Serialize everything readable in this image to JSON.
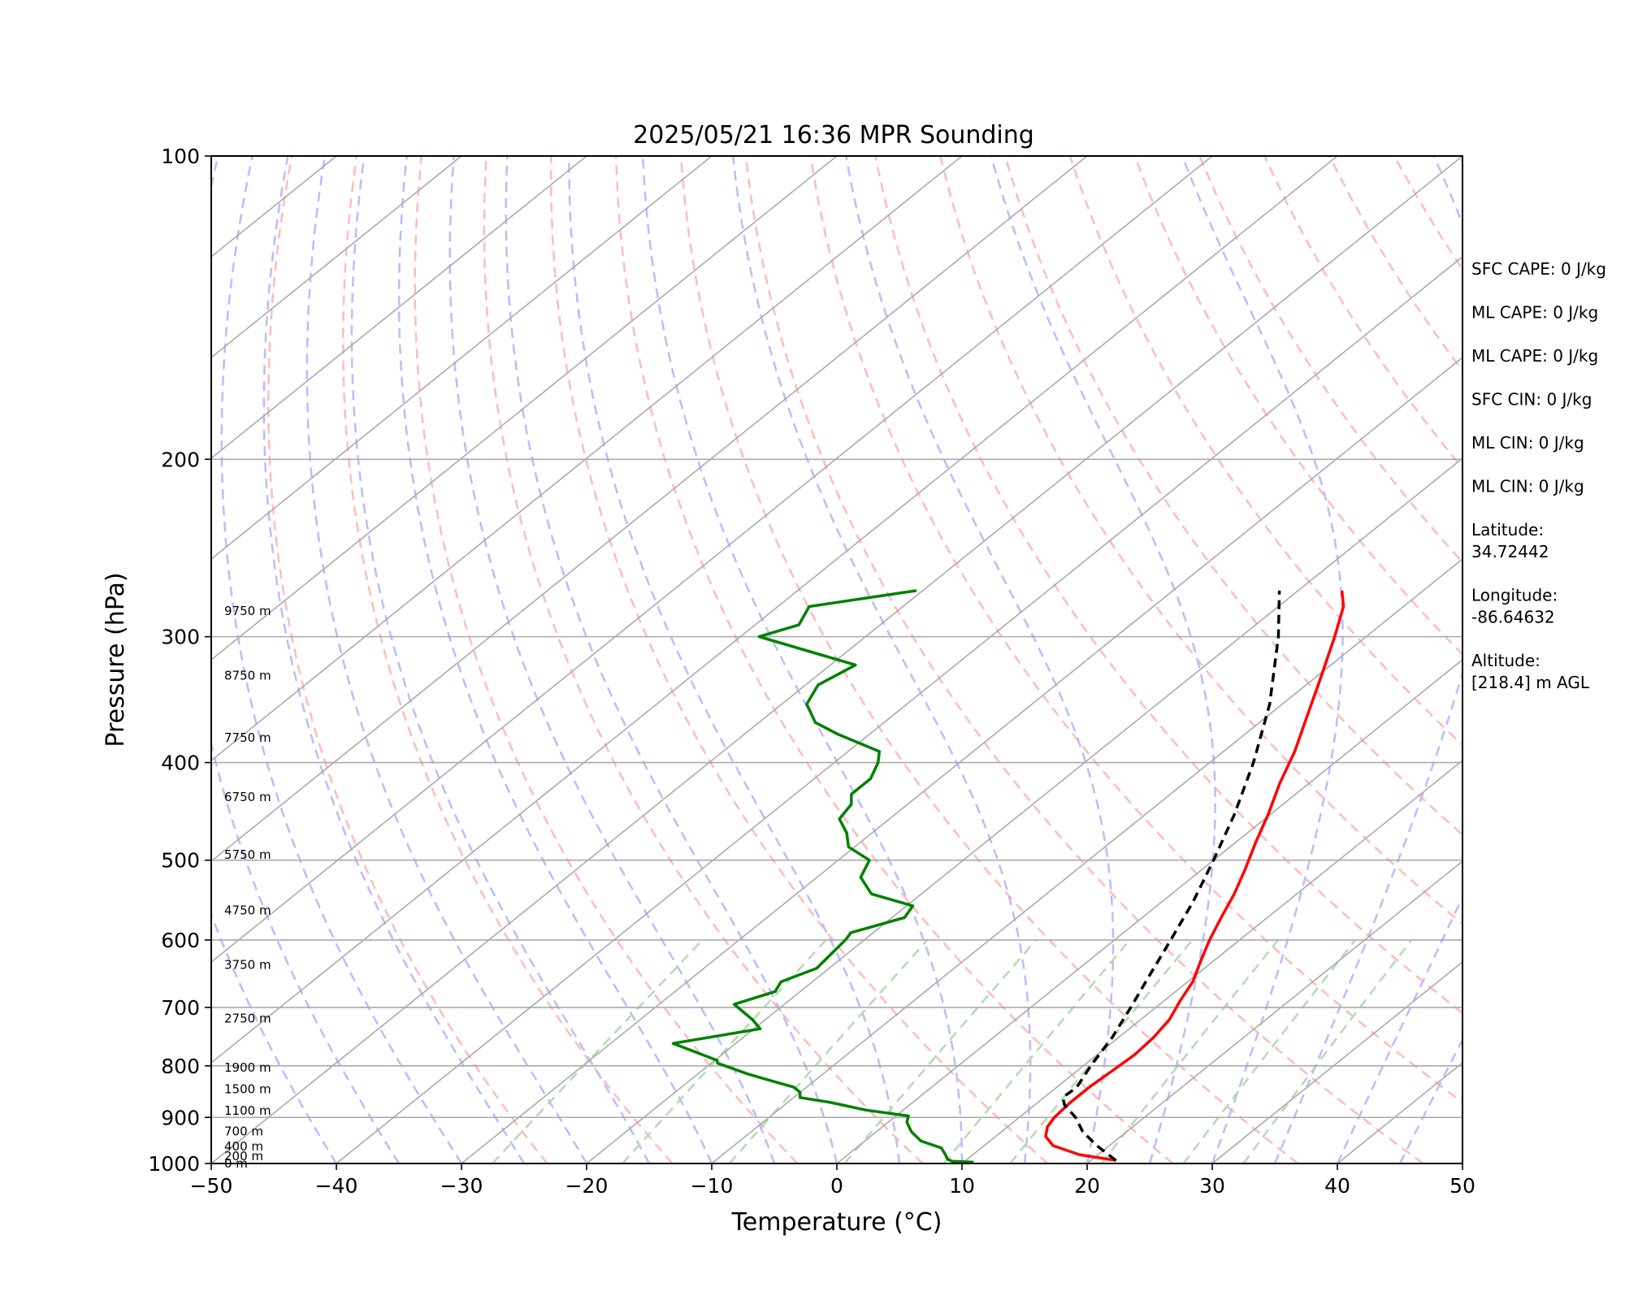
{
  "chart_data": {
    "type": "line",
    "title": "2025/05/21 16:36 MPR Sounding",
    "xlabel": "Temperature (°C)",
    "ylabel": "Pressure (hPa)",
    "xlim": [
      -50,
      50
    ],
    "ylim": [
      1000,
      100
    ],
    "y_scale": "log",
    "x_ticks": [
      "−50",
      "−40",
      "−30",
      "−20",
      "−10",
      "0",
      "10",
      "20",
      "30",
      "40",
      "50"
    ],
    "y_ticks": [
      {
        "p": 100,
        "label": "100"
      },
      {
        "p": 200,
        "label": "200"
      },
      {
        "p": 300,
        "label": "300"
      },
      {
        "p": 400,
        "label": "400"
      },
      {
        "p": 500,
        "label": "500"
      },
      {
        "p": 600,
        "label": "600"
      },
      {
        "p": 700,
        "label": "700"
      },
      {
        "p": 800,
        "label": "800"
      },
      {
        "p": 900,
        "label": "900"
      },
      {
        "p": 1000,
        "label": "1000"
      }
    ],
    "grid": true,
    "skew": "skew-T",
    "colors": {
      "temperature": "#ff0000",
      "dewpoint": "#008000",
      "parcel": "#000000",
      "dry_adiabats": "#ffbbbb",
      "moist_adiabats": "#bbbbff",
      "mixing_ratio": "#b3dbb3",
      "isotherms": "#aaaaaa"
    },
    "altitude_labels": [
      {
        "p": 1000,
        "label": "0 m"
      },
      {
        "p": 983,
        "label": "200 m"
      },
      {
        "p": 962,
        "label": "400 m"
      },
      {
        "p": 929,
        "label": "700 m"
      },
      {
        "p": 886,
        "label": "1100 m"
      },
      {
        "p": 844,
        "label": "1500 m"
      },
      {
        "p": 803,
        "label": "1900 m"
      },
      {
        "p": 718,
        "label": "2750 m"
      },
      {
        "p": 635,
        "label": "3750 m"
      },
      {
        "p": 561,
        "label": "4750 m"
      },
      {
        "p": 494,
        "label": "5750 m"
      },
      {
        "p": 433,
        "label": "6750 m"
      },
      {
        "p": 378,
        "label": "7750 m"
      },
      {
        "p": 328,
        "label": "8750 m"
      },
      {
        "p": 283,
        "label": "9750 m"
      }
    ],
    "series": [
      {
        "key": "temperature",
        "points": [
          {
            "p": 993,
            "t": 22.0
          },
          {
            "p": 980,
            "t": 18.5
          },
          {
            "p": 960,
            "t": 15.5
          },
          {
            "p": 940,
            "t": 14.0
          },
          {
            "p": 920,
            "t": 13.2
          },
          {
            "p": 900,
            "t": 12.8
          },
          {
            "p": 870,
            "t": 12.6
          },
          {
            "p": 840,
            "t": 12.6
          },
          {
            "p": 810,
            "t": 12.8
          },
          {
            "p": 780,
            "t": 13.0
          },
          {
            "p": 750,
            "t": 12.8
          },
          {
            "p": 720,
            "t": 12.3
          },
          {
            "p": 690,
            "t": 11.3
          },
          {
            "p": 660,
            "t": 10.4
          },
          {
            "p": 630,
            "t": 9.0
          },
          {
            "p": 600,
            "t": 7.6
          },
          {
            "p": 570,
            "t": 6.3
          },
          {
            "p": 540,
            "t": 5.0
          },
          {
            "p": 510,
            "t": 3.4
          },
          {
            "p": 480,
            "t": 1.6
          },
          {
            "p": 450,
            "t": -0.2
          },
          {
            "p": 420,
            "t": -2.3
          },
          {
            "p": 390,
            "t": -4.3
          },
          {
            "p": 360,
            "t": -6.8
          },
          {
            "p": 330,
            "t": -9.5
          },
          {
            "p": 300,
            "t": -12.5
          },
          {
            "p": 280,
            "t": -14.8
          },
          {
            "p": 270,
            "t": -16.5
          }
        ]
      },
      {
        "key": "dewpoint",
        "points": [
          {
            "p": 997,
            "t": 10.8
          },
          {
            "p": 995,
            "t": 9.0
          },
          {
            "p": 990,
            "t": 8.4
          },
          {
            "p": 980,
            "t": 7.8
          },
          {
            "p": 965,
            "t": 6.8
          },
          {
            "p": 950,
            "t": 4.5
          },
          {
            "p": 930,
            "t": 2.8
          },
          {
            "p": 910,
            "t": 1.5
          },
          {
            "p": 897,
            "t": 1.0
          },
          {
            "p": 885,
            "t": -3.0
          },
          {
            "p": 870,
            "t": -6.5
          },
          {
            "p": 860,
            "t": -9.5
          },
          {
            "p": 850,
            "t": -10.0
          },
          {
            "p": 840,
            "t": -11.0
          },
          {
            "p": 830,
            "t": -13.0
          },
          {
            "p": 815,
            "t": -16.0
          },
          {
            "p": 795,
            "t": -19.5
          },
          {
            "p": 790,
            "t": -19.8
          },
          {
            "p": 760,
            "t": -25.0
          },
          {
            "p": 735,
            "t": -19.5
          },
          {
            "p": 720,
            "t": -21.0
          },
          {
            "p": 695,
            "t": -24.0
          },
          {
            "p": 675,
            "t": -22.0
          },
          {
            "p": 660,
            "t": -22.5
          },
          {
            "p": 640,
            "t": -21.0
          },
          {
            "p": 600,
            "t": -21.5
          },
          {
            "p": 590,
            "t": -21.8
          },
          {
            "p": 570,
            "t": -19.0
          },
          {
            "p": 555,
            "t": -19.5
          },
          {
            "p": 540,
            "t": -24.0
          },
          {
            "p": 520,
            "t": -26.5
          },
          {
            "p": 500,
            "t": -27.5
          },
          {
            "p": 485,
            "t": -30.5
          },
          {
            "p": 470,
            "t": -32.0
          },
          {
            "p": 455,
            "t": -34.0
          },
          {
            "p": 440,
            "t": -34.5
          },
          {
            "p": 430,
            "t": -35.5
          },
          {
            "p": 415,
            "t": -35.5
          },
          {
            "p": 400,
            "t": -36.5
          },
          {
            "p": 390,
            "t": -37.5
          },
          {
            "p": 375,
            "t": -42.5
          },
          {
            "p": 365,
            "t": -45.5
          },
          {
            "p": 350,
            "t": -48.0
          },
          {
            "p": 335,
            "t": -49.0
          },
          {
            "p": 320,
            "t": -48.0
          },
          {
            "p": 300,
            "t": -58.5
          },
          {
            "p": 292,
            "t": -56.5
          },
          {
            "p": 280,
            "t": -57.5
          },
          {
            "p": 270,
            "t": -50.5
          }
        ]
      },
      {
        "key": "parcel",
        "dashed": true,
        "points": [
          {
            "p": 993,
            "t": 22.0
          },
          {
            "p": 960,
            "t": 19.0
          },
          {
            "p": 930,
            "t": 16.5
          },
          {
            "p": 900,
            "t": 14.5
          },
          {
            "p": 875,
            "t": 12.4
          },
          {
            "p": 860,
            "t": 11.5
          },
          {
            "p": 840,
            "t": 11.6
          },
          {
            "p": 800,
            "t": 10.6
          },
          {
            "p": 750,
            "t": 9.5
          },
          {
            "p": 700,
            "t": 8.0
          },
          {
            "p": 650,
            "t": 6.3
          },
          {
            "p": 600,
            "t": 4.5
          },
          {
            "p": 550,
            "t": 2.5
          },
          {
            "p": 500,
            "t": 0.0
          },
          {
            "p": 450,
            "t": -2.9
          },
          {
            "p": 400,
            "t": -6.5
          },
          {
            "p": 350,
            "t": -11.0
          },
          {
            "p": 300,
            "t": -17.0
          },
          {
            "p": 270,
            "t": -21.5
          }
        ]
      }
    ]
  },
  "info": [
    {
      "lines": [
        "SFC CAPE: 0 J/kg"
      ]
    },
    {
      "lines": [
        "ML CAPE: 0 J/kg"
      ]
    },
    {
      "lines": [
        "ML CAPE: 0 J/kg"
      ]
    },
    {
      "lines": [
        "SFC CIN: 0 J/kg"
      ]
    },
    {
      "lines": [
        "ML CIN: 0 J/kg"
      ]
    },
    {
      "lines": [
        "ML CIN: 0 J/kg"
      ]
    },
    {
      "lines": [
        "Latitude:",
        "34.72442"
      ]
    },
    {
      "lines": [
        "Longitude:",
        "-86.64632"
      ]
    },
    {
      "lines": [
        "Altitude:",
        "[218.4] m AGL"
      ]
    }
  ]
}
